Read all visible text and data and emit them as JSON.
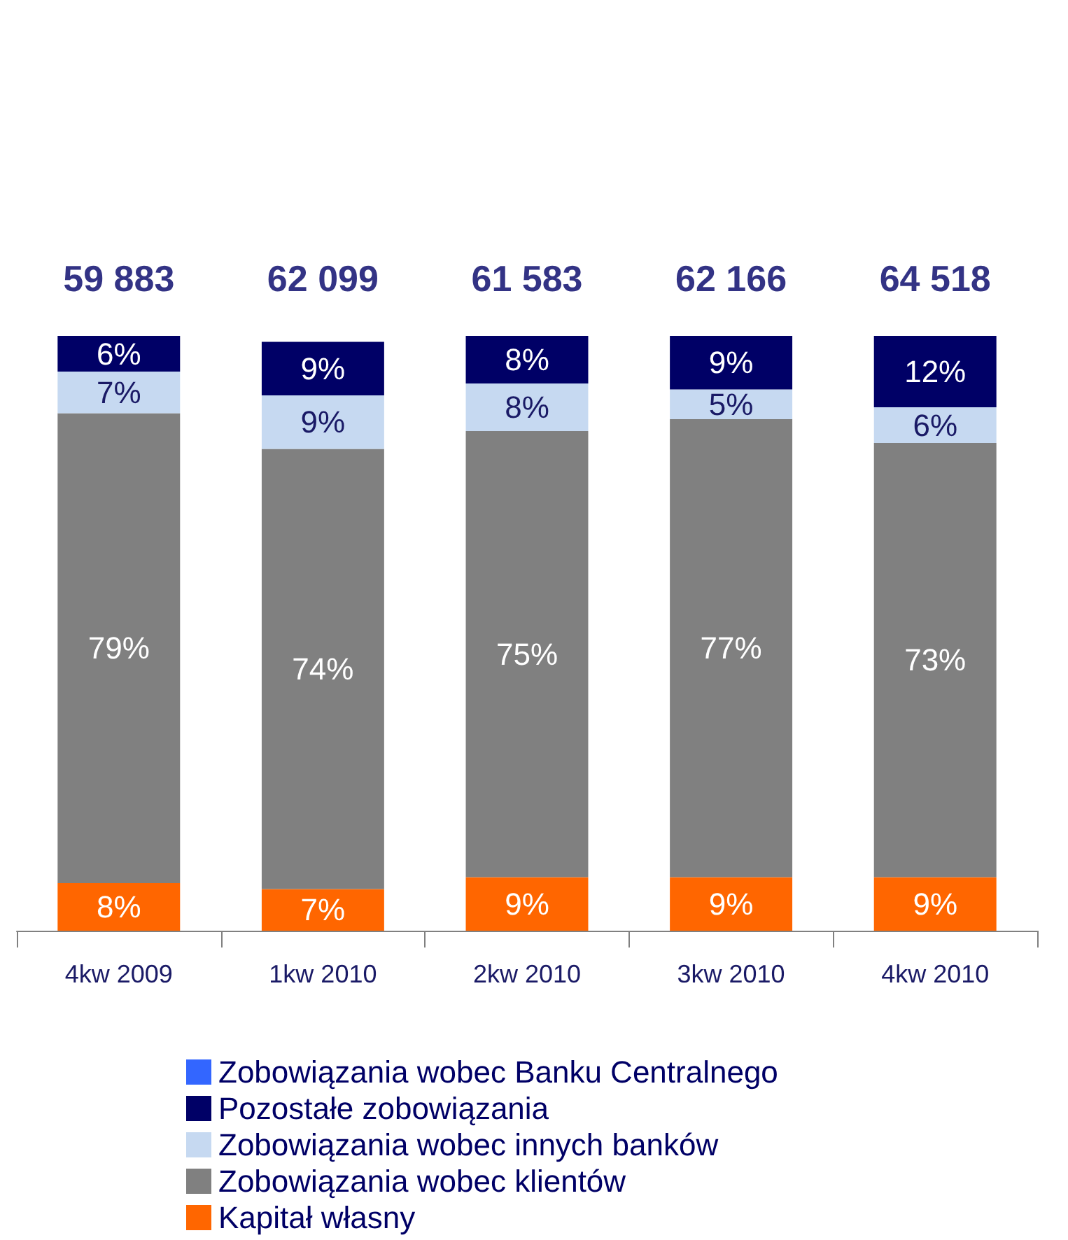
{
  "chart_data": {
    "type": "bar",
    "stacked": true,
    "categories": [
      "4kw 2009",
      "1kw 2010",
      "2kw 2010",
      "3kw 2010",
      "4kw 2010"
    ],
    "series": [
      {
        "name": "Kapitał własny",
        "color": "#ff6600",
        "values": [
          8,
          7,
          9,
          9,
          9
        ],
        "value_labels": [
          "8%",
          "7%",
          "9%",
          "9%",
          "9%"
        ]
      },
      {
        "name": "Zobowiązania wobec klientów",
        "color": "#808080",
        "values": [
          79,
          74,
          75,
          77,
          73
        ],
        "value_labels": [
          "79%",
          "74%",
          "75%",
          "77%",
          "73%"
        ]
      },
      {
        "name": "Zobowiązania wobec innych banków",
        "color": "#c6d9f1",
        "values": [
          7,
          9,
          8,
          5,
          6
        ],
        "value_labels": [
          "7%",
          "9%",
          "8%",
          "5%",
          "6%"
        ]
      },
      {
        "name": "Pozostałe zobowiązania",
        "color": "#000066",
        "values": [
          6,
          9,
          8,
          9,
          12
        ],
        "value_labels": [
          "6%",
          "9%",
          "8%",
          "9%",
          "12%"
        ]
      },
      {
        "name": "Zobowiązania wobec Banku Centralnego",
        "color": "#3366ff",
        "values": [
          null,
          null,
          null,
          null,
          null
        ]
      }
    ],
    "annotations": [
      {
        "text": "59 883",
        "x": "4kw 2009",
        "y": 100
      },
      {
        "text": "62 099",
        "x": "1kw 2010",
        "y": 100
      },
      {
        "text": "61 583",
        "x": "2kw 2010",
        "y": 100
      },
      {
        "text": "62 166",
        "x": "3kw 2010",
        "y": 100
      },
      {
        "text": "64 518",
        "x": "4kw 2010",
        "y": 100
      }
    ],
    "ylim": [
      0,
      100
    ],
    "tick_labels": "x",
    "legend": "bottom"
  }
}
